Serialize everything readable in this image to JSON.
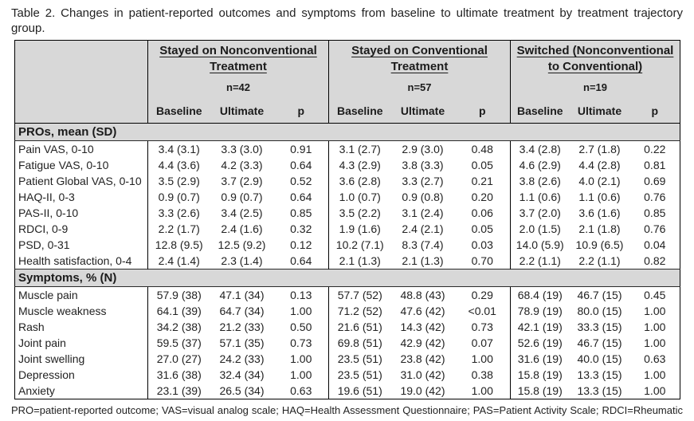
{
  "title": "Table 2. Changes in patient-reported outcomes and symptoms from baseline to ultimate treatment by treatment trajectory group.",
  "groups": [
    {
      "name": "Stayed on Nonconventional Treatment",
      "n": "n=42"
    },
    {
      "name": "Stayed on Conventional Treatment",
      "n": "n=57"
    },
    {
      "name": "Switched (Nonconventional to Conventional)",
      "n": "n=19"
    }
  ],
  "col_headers": [
    "Baseline",
    "Ultimate",
    "p"
  ],
  "sections": [
    {
      "label": "PROs, mean (SD)",
      "rows": [
        {
          "label": "Pain VAS, 0-10",
          "cells": [
            "3.4 (3.1)",
            "3.3 (3.0)",
            "0.91",
            "3.1 (2.7)",
            "2.9 (3.0)",
            "0.48",
            "3.4 (2.8)",
            "2.7 (1.8)",
            "0.22"
          ]
        },
        {
          "label": "Fatigue VAS, 0-10",
          "cells": [
            "4.4 (3.6)",
            "4.2 (3.3)",
            "0.64",
            "4.3 (2.9)",
            "3.8 (3.3)",
            "0.05",
            "4.6 (2.9)",
            "4.4 (2.8)",
            "0.81"
          ]
        },
        {
          "label": "Patient Global VAS, 0-10",
          "cells": [
            "3.5 (2.9)",
            "3.7 (2.9)",
            "0.52",
            "3.6 (2.8)",
            "3.3 (2.7)",
            "0.21",
            "3.8 (2.6)",
            "4.0 (2.1)",
            "0.69"
          ]
        },
        {
          "label": "HAQ-II, 0-3",
          "cells": [
            "0.9 (0.7)",
            "0.9 (0.7)",
            "0.64",
            "1.0 (0.7)",
            "0.9 (0.8)",
            "0.20",
            "1.1 (0.6)",
            "1.1 (0.6)",
            "0.76"
          ]
        },
        {
          "label": "PAS-II, 0-10",
          "cells": [
            "3.3 (2.6)",
            "3.4 (2.5)",
            "0.85",
            "3.5 (2.2)",
            "3.1 (2.4)",
            "0.06",
            "3.7 (2.0)",
            "3.6 (1.6)",
            "0.85"
          ]
        },
        {
          "label": "RDCI, 0-9",
          "cells": [
            "2.2 (1.7)",
            "2.4 (1.6)",
            "0.32",
            "1.9 (1.6)",
            "2.4 (2.1)",
            "0.05",
            "2.0 (1.5)",
            "2.1 (1.8)",
            "0.76"
          ]
        },
        {
          "label": "PSD, 0-31",
          "cells": [
            "12.8 (9.5)",
            "12.5 (9.2)",
            "0.12",
            "10.2 (7.1)",
            "8.3 (7.4)",
            "0.03",
            "14.0 (5.9)",
            "10.9 (6.5)",
            "0.04"
          ]
        },
        {
          "label": "Health satisfaction, 0-4",
          "cells": [
            "2.4 (1.4)",
            "2.3 (1.4)",
            "0.64",
            "2.1 (1.3)",
            "2.1 (1.3)",
            "0.70",
            "2.2 (1.1)",
            "2.2 (1.1)",
            "0.82"
          ]
        }
      ]
    },
    {
      "label": "Symptoms, % (N)",
      "rows": [
        {
          "label": "Muscle pain",
          "cells": [
            "57.9 (38)",
            "47.1 (34)",
            "0.13",
            "57.7 (52)",
            "48.8 (43)",
            "0.29",
            "68.4 (19)",
            "46.7 (15)",
            "0.45"
          ]
        },
        {
          "label": "Muscle weakness",
          "cells": [
            "64.1 (39)",
            "64.7 (34)",
            "1.00",
            "71.2 (52)",
            "47.6 (42)",
            "<0.01",
            "78.9 (19)",
            "80.0 (15)",
            "1.00"
          ]
        },
        {
          "label": "Rash",
          "cells": [
            "34.2 (38)",
            "21.2 (33)",
            "0.50",
            "21.6 (51)",
            "14.3 (42)",
            "0.73",
            "42.1 (19)",
            "33.3 (15)",
            "1.00"
          ]
        },
        {
          "label": "Joint pain",
          "cells": [
            "59.5 (37)",
            "57.1 (35)",
            "0.73",
            "69.8 (51)",
            "42.9 (42)",
            "0.07",
            "52.6 (19)",
            "46.7 (15)",
            "1.00"
          ]
        },
        {
          "label": "Joint swelling",
          "cells": [
            "27.0 (27)",
            "24.2 (33)",
            "1.00",
            "23.5 (51)",
            "23.8 (42)",
            "1.00",
            "31.6 (19)",
            "40.0 (15)",
            "0.63"
          ]
        },
        {
          "label": "Depression",
          "cells": [
            "31.6 (38)",
            "32.4 (34)",
            "1.00",
            "23.5 (51)",
            "31.0 (42)",
            "0.38",
            "15.8 (19)",
            "13.3 (15)",
            "1.00"
          ]
        },
        {
          "label": "Anxiety",
          "cells": [
            "23.1 (39)",
            "26.5 (34)",
            "0.63",
            "19.6 (51)",
            "19.0 (42)",
            "1.00",
            "15.8 (19)",
            "13.3 (15)",
            "1.00"
          ]
        }
      ]
    }
  ],
  "footnote": "PRO=patient-reported outcome; VAS=visual analog scale; HAQ=Health Assessment Questionnaire; PAS=Patient Activity Scale; RDCI=Rheumatic Disease Comorbidity Index; PSD=polysymptomatic distress.",
  "colors": {
    "header_bg": "#d8d8d8",
    "border": "#000000",
    "text": "#222222"
  }
}
